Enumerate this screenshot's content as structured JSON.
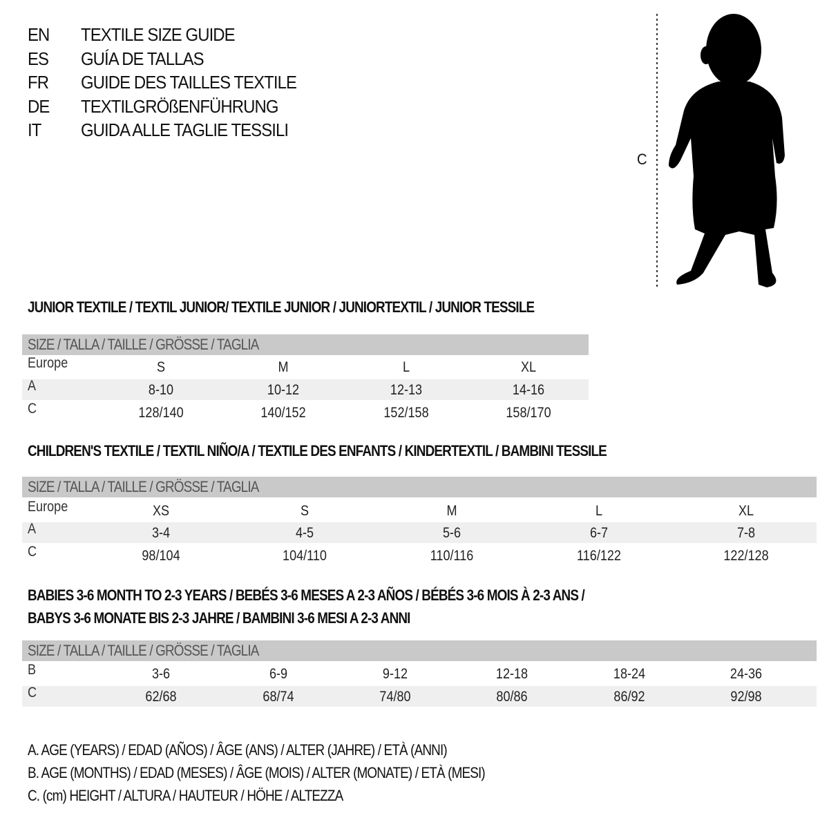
{
  "titles": [
    {
      "code": "EN",
      "text": "TEXTILE SIZE GUIDE"
    },
    {
      "code": "ES",
      "text": "GUÍA DE TALLAS"
    },
    {
      "code": "FR",
      "text": "GUIDE DES TAILLES TEXTILE"
    },
    {
      "code": "DE",
      "text": "TEXTILGRÖßENFÜHRUNG"
    },
    {
      "code": "IT",
      "text": "GUIDA ALLE TAGLIE TESSILI"
    }
  ],
  "figure": {
    "icon": "child-silhouette-icon",
    "measure_label": "C"
  },
  "junior": {
    "heading": "JUNIOR TEXTILE / TEXTIL JUNIOR/ TEXTILE JUNIOR / JUNIORTEXTIL / JUNIOR TESSILE",
    "size_header": "SIZE / TALLA / TAILLE / GRÖSSE / TAGLIA",
    "rows": [
      {
        "label": "Europe",
        "values": [
          "S",
          "M",
          "L",
          "XL"
        ]
      },
      {
        "label": "A",
        "values": [
          "8-10",
          "10-12",
          "12-13",
          "14-16"
        ]
      },
      {
        "label": "C",
        "values": [
          "128/140",
          "140/152",
          "152/158",
          "158/170"
        ]
      }
    ]
  },
  "children": {
    "heading": "CHILDREN'S TEXTILE / TEXTIL NIÑO/A / TEXTILE DES ENFANTS / KINDERTEXTIL / BAMBINI TESSILE",
    "size_header": "SIZE / TALLA / TAILLE / GRÖSSE / TAGLIA",
    "rows": [
      {
        "label": "Europe",
        "values": [
          "XS",
          "S",
          "M",
          "L",
          "XL"
        ]
      },
      {
        "label": "A",
        "values": [
          "3-4",
          "4-5",
          "5-6",
          "6-7",
          "7-8"
        ]
      },
      {
        "label": "C",
        "values": [
          "98/104",
          "104/110",
          "110/116",
          "116/122",
          "122/128"
        ]
      }
    ]
  },
  "babies": {
    "heading_line1": "BABIES 3-6 MONTH TO 2-3 YEARS / BEBÉS 3-6 MESES A 2-3 AÑOS / BÉBÉS 3-6 MOIS À 2-3 ANS /",
    "heading_line2": "BABYS 3-6 MONATE BIS 2-3 JAHRE / BAMBINI 3-6 MESI A 2-3 ANNI",
    "size_header": "SIZE / TALLA / TAILLE / GRÖSSE / TAGLIA",
    "rows": [
      {
        "label": "B",
        "values": [
          "3-6",
          "6-9",
          "9-12",
          "12-18",
          "18-24",
          "24-36"
        ]
      },
      {
        "label": "C",
        "values": [
          "62/68",
          "68/74",
          "74/80",
          "80/86",
          "86/92",
          "92/98"
        ]
      }
    ]
  },
  "legend": [
    "A. AGE (YEARS) / EDAD (AÑOS) / ÂGE (ANS) / ALTER (JAHRE) / ETÀ (ANNI)",
    "B. AGE (MONTHS) / EDAD (MESES) / ÂGE (MOIS) / ALTER (MONATE) / ETÀ (MESI)",
    "C. (cm) HEIGHT / ALTURA / HAUTEUR / HÖHE / ALTEZZA"
  ],
  "colors": {
    "header_bar": "#c9c9c9",
    "shaded_row": "#efefef",
    "text": "#111111"
  }
}
